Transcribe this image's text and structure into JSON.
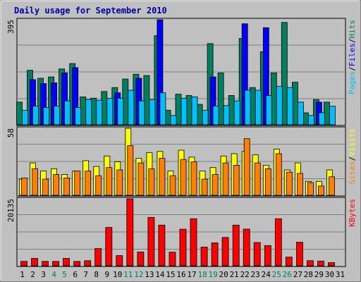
{
  "chart_data": {
    "type": "bar",
    "title": "Daily usage for September 2010",
    "categories": [
      "1",
      "2",
      "3",
      "4",
      "5",
      "6",
      "7",
      "8",
      "9",
      "10",
      "11",
      "12",
      "13",
      "14",
      "15",
      "16",
      "17",
      "18",
      "19",
      "20",
      "21",
      "22",
      "23",
      "24",
      "25",
      "26",
      "27",
      "28",
      "29",
      "30",
      "31"
    ],
    "weekend_days": [
      "4",
      "5",
      "11",
      "12",
      "18",
      "19",
      "25",
      "26"
    ],
    "panels": [
      {
        "name": "hits-files-pages",
        "ymax_label": "395",
        "ymax": 395,
        "legend": [
          "Pages",
          "/",
          "Files",
          "/",
          "Hits"
        ],
        "series": [
          {
            "name": "Hits",
            "color": "#00805f",
            "values": [
              85,
              205,
              175,
              180,
              210,
              230,
              105,
              100,
              125,
              140,
              172,
              190,
              185,
              335,
              55,
              115,
              110,
              77,
              305,
              195,
              110,
              325,
              140,
              275,
              195,
              385,
              160,
              45,
              95,
              85,
              0
            ]
          },
          {
            "name": "Files",
            "color": "#0000ff",
            "values": [
              0,
              170,
              155,
              158,
              195,
              215,
              0,
              0,
              0,
              120,
              0,
              175,
              0,
              395,
              0,
              0,
              0,
              0,
              180,
              0,
              0,
              380,
              0,
              365,
              0,
              0,
              0,
              0,
              85,
              0,
              0
            ]
          },
          {
            "name": "Pages",
            "color": "#00c0ff",
            "values": [
              55,
              70,
              65,
              70,
              90,
              65,
              95,
              92,
              100,
              100,
              130,
              90,
              95,
              120,
              35,
              100,
              105,
              55,
              70,
              72,
              90,
              130,
              130,
              110,
              145,
              140,
              85,
              35,
              45,
              70,
              0
            ]
          }
        ]
      },
      {
        "name": "visits-sites",
        "ymax_label": "58",
        "ymax": 58,
        "legend": [
          "Sites",
          "/",
          "Visits"
        ],
        "series": [
          {
            "name": "Visits",
            "color": "#ffff00",
            "values": [
              14,
              28,
              21,
              23,
              18,
              21,
              30,
              25,
              34,
              29,
              58,
              32,
              37,
              38,
              21,
              39,
              33,
              21,
              24,
              34,
              36,
              38,
              35,
              26,
              40,
              22,
              28,
              12,
              12,
              22,
              0
            ]
          },
          {
            "name": "Sites",
            "color": "#ff8000",
            "values": [
              15,
              23,
              14,
              18,
              15,
              21,
              21,
              17,
              24,
              22,
              43,
              28,
              23,
              32,
              17,
              31,
              29,
              14,
              18,
              28,
              26,
              49,
              28,
              23,
              36,
              20,
              19,
              11,
              8,
              16,
              0
            ]
          }
        ]
      },
      {
        "name": "kbytes",
        "ymax_label": "20135",
        "ymax": 20135,
        "legend": [
          "KBytes"
        ],
        "series": [
          {
            "name": "KBytes",
            "color": "#ff0000",
            "values": [
              1310,
              2220,
              1315,
              1320,
              2240,
              1315,
              1530,
              5170,
              11520,
              3060,
              20135,
              4140,
              14555,
              12230,
              4100,
              11010,
              14150,
              5610,
              6880,
              8510,
              12230,
              11020,
              7000,
              6090,
              14150,
              2600,
              7070,
              1530,
              1430,
              955,
              0
            ]
          }
        ]
      }
    ]
  }
}
